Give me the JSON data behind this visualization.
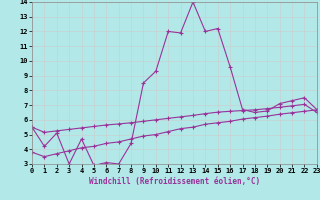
{
  "xlabel": "Windchill (Refroidissement éolien,°C)",
  "xlim": [
    0,
    23
  ],
  "ylim": [
    3,
    14
  ],
  "yticks": [
    3,
    4,
    5,
    6,
    7,
    8,
    9,
    10,
    11,
    12,
    13,
    14
  ],
  "xticks": [
    0,
    1,
    2,
    3,
    4,
    5,
    6,
    7,
    8,
    9,
    10,
    11,
    12,
    13,
    14,
    15,
    16,
    17,
    18,
    19,
    20,
    21,
    22,
    23
  ],
  "background_color": "#b2e8e8",
  "grid_color": "#cccccc",
  "line_color": "#993399",
  "line1_x": [
    0,
    1,
    2,
    3,
    4,
    5,
    6,
    7,
    8,
    9,
    10,
    11,
    12,
    13,
    14,
    15,
    16,
    17,
    18,
    19,
    20,
    21,
    22,
    23
  ],
  "line1_y": [
    5.5,
    4.2,
    5.1,
    3.0,
    4.7,
    2.9,
    3.1,
    3.0,
    4.4,
    8.5,
    9.3,
    12.0,
    11.9,
    14.0,
    12.0,
    12.2,
    9.6,
    6.7,
    6.5,
    6.6,
    7.1,
    7.3,
    7.5,
    6.7
  ],
  "line2_x": [
    0,
    1,
    2,
    3,
    4,
    5,
    6,
    7,
    8,
    9,
    10,
    11,
    12,
    13,
    14,
    15,
    16,
    17,
    18,
    19,
    20,
    21,
    22,
    23
  ],
  "line2_y": [
    5.5,
    5.15,
    5.25,
    5.35,
    5.45,
    5.55,
    5.65,
    5.72,
    5.8,
    5.9,
    6.0,
    6.1,
    6.2,
    6.3,
    6.42,
    6.52,
    6.58,
    6.63,
    6.68,
    6.76,
    6.85,
    6.95,
    7.05,
    6.5
  ],
  "line3_x": [
    0,
    1,
    2,
    3,
    4,
    5,
    6,
    7,
    8,
    9,
    10,
    11,
    12,
    13,
    14,
    15,
    16,
    17,
    18,
    19,
    20,
    21,
    22,
    23
  ],
  "line3_y": [
    3.8,
    3.5,
    3.7,
    3.9,
    4.1,
    4.2,
    4.4,
    4.5,
    4.7,
    4.9,
    5.0,
    5.2,
    5.4,
    5.5,
    5.7,
    5.8,
    5.9,
    6.05,
    6.15,
    6.25,
    6.38,
    6.48,
    6.58,
    6.68
  ]
}
